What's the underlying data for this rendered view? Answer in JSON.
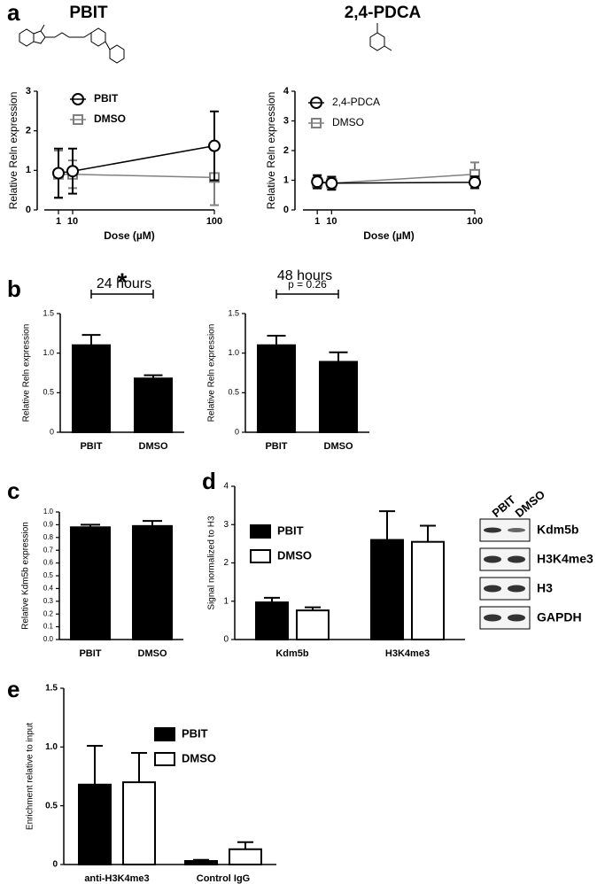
{
  "chart_data": [
    {
      "panel": "a",
      "type": "line",
      "title": "PBIT",
      "ylabel": "Relative Reln expression",
      "xlabel": "Dose (µM)",
      "x": [
        1,
        10,
        100
      ],
      "xlim": [
        -8,
        100
      ],
      "xticks": [
        1,
        10,
        100
      ],
      "ylim": [
        0,
        3
      ],
      "yticks": [
        0,
        1,
        2,
        3
      ],
      "series": [
        {
          "name": "PBIT",
          "color": "#000000",
          "marker": "circle",
          "values": [
            0.93,
            0.98,
            1.62
          ],
          "errors": [
            0.62,
            0.57,
            0.87
          ]
        },
        {
          "name": "DMSO",
          "color": "#808080",
          "marker": "square",
          "values": [
            0.9,
            0.9,
            0.82
          ],
          "errors": [
            0.6,
            0.35,
            0.7
          ]
        }
      ]
    },
    {
      "type": "line",
      "title": "2,4-PDCA",
      "ylabel": "Relative Reln expression",
      "xlabel": "Dose (µM)",
      "x": [
        1,
        10,
        100
      ],
      "xlim": [
        -8,
        100
      ],
      "xticks": [
        1,
        10,
        100
      ],
      "ylim": [
        0,
        4
      ],
      "yticks": [
        0,
        1,
        2,
        3,
        4
      ],
      "series": [
        {
          "name": "2,4-PDCA",
          "color": "#000000",
          "marker": "circle",
          "values": [
            0.95,
            0.9,
            0.93
          ],
          "errors": [
            0.22,
            0.22,
            0.2
          ]
        },
        {
          "name": "DMSO",
          "color": "#808080",
          "marker": "square",
          "values": [
            0.92,
            0.9,
            1.2
          ],
          "errors": [
            0.2,
            0.2,
            0.4
          ]
        }
      ]
    },
    {
      "panel": "b",
      "type": "bar",
      "title": "24 hours",
      "ylabel": "Relative Reln expression",
      "annotation": "*",
      "categories": [
        "PBIT",
        "DMSO"
      ],
      "ylim": [
        0,
        1.5
      ],
      "yticks": [
        0,
        0.5,
        {
          "value": 1,
          "label": "1.0"
        },
        {
          "value": 1.5,
          "label": "1.5"
        }
      ],
      "series": [
        {
          "color": "#000000",
          "values": [
            1.1,
            0.68
          ],
          "errors": [
            0.13,
            0.04
          ]
        }
      ]
    },
    {
      "type": "bar",
      "title": "48 hours",
      "ylabel": "Relative Reln expression",
      "annotation": "p = 0.26",
      "categories": [
        "PBIT",
        "DMSO"
      ],
      "ylim": [
        0,
        1.5
      ],
      "yticks": [
        0,
        0.5,
        {
          "value": 1,
          "label": "1.0"
        },
        {
          "value": 1.5,
          "label": "1.5"
        }
      ],
      "series": [
        {
          "color": "#000000",
          "values": [
            1.1,
            0.89
          ],
          "errors": [
            0.12,
            0.12
          ]
        }
      ]
    },
    {
      "panel": "c",
      "type": "bar",
      "ylabel": "Relative Kdm5b expression",
      "categories": [
        "PBIT",
        "DMSO"
      ],
      "ylim": [
        0,
        1
      ],
      "yticks": [
        {
          "value": 0,
          "label": "0.0"
        },
        0.1,
        0.2,
        0.3,
        0.4,
        0.5,
        0.6,
        0.7,
        0.8,
        0.9,
        {
          "value": 1,
          "label": "1.0"
        }
      ],
      "series": [
        {
          "color": "#000000",
          "values": [
            0.88,
            0.89
          ],
          "errors": [
            0.02,
            0.04
          ]
        }
      ]
    },
    {
      "panel": "d",
      "type": "bar",
      "ylabel": "Signal normalized to H3",
      "categories": [
        "Kdm5b",
        "H3K4me3"
      ],
      "ylim": [
        0,
        4
      ],
      "yticks": [
        0,
        1,
        2,
        3,
        4
      ],
      "series": [
        {
          "name": "PBIT",
          "color": "#000000",
          "values": [
            0.97,
            2.6
          ],
          "errors": [
            0.12,
            0.75
          ]
        },
        {
          "name": "DMSO",
          "color": "#ffffff",
          "values": [
            0.76,
            2.55
          ],
          "errors": [
            0.08,
            0.42
          ]
        }
      ],
      "blot": {
        "lanes": [
          "PBIT",
          "DMSO"
        ],
        "bands": [
          "Kdm5b",
          "H3K4me3",
          "H3",
          "GAPDH"
        ]
      }
    },
    {
      "panel": "e",
      "type": "bar",
      "ylabel": "Enrichment relative to input",
      "categories": [
        "anti-H3K4me3",
        "Control IgG"
      ],
      "ylim": [
        0,
        1.5
      ],
      "yticks": [
        0,
        0.5,
        {
          "value": 1,
          "label": "1.0"
        },
        {
          "value": 1.5,
          "label": "1.5"
        }
      ],
      "series": [
        {
          "name": "PBIT",
          "color": "#000000",
          "values": [
            0.68,
            0.03
          ],
          "errors": [
            0.33,
            0.01
          ]
        },
        {
          "name": "DMSO",
          "color": "#ffffff",
          "values": [
            0.7,
            0.13
          ],
          "errors": [
            0.25,
            0.06
          ]
        }
      ]
    }
  ]
}
